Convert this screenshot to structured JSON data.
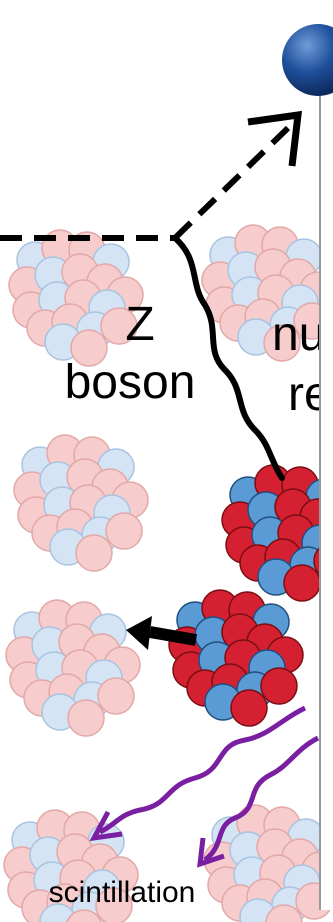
{
  "labels": {
    "z": "Z",
    "boson": "boson",
    "nuclear_partial": "nu",
    "recoil_partial": "re",
    "scintillation": "scintillation"
  }
}
